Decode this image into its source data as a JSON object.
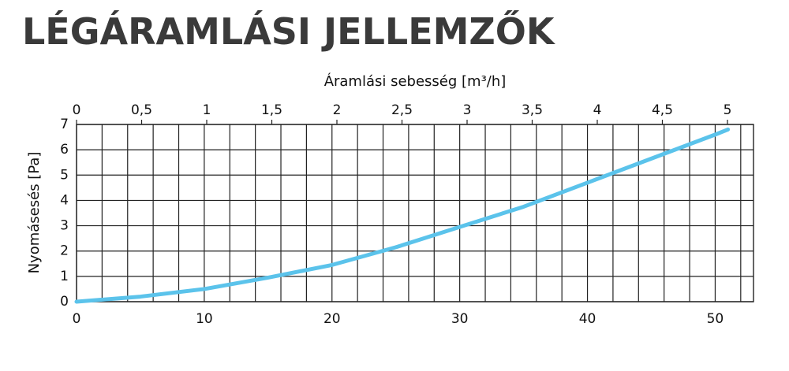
{
  "chart_data": {
    "type": "line",
    "title": "LÉGÁRAMLÁSI JELLEMZŐK",
    "x2_label": "Áramlási sebesség [m³/h]",
    "y_label": "Nyomásesés [Pa]",
    "x": [
      0,
      5,
      10,
      15,
      20,
      25,
      30,
      35,
      40,
      45,
      50,
      51
    ],
    "series": [
      {
        "color": "#5bc3eb",
        "values": [
          0,
          0.2,
          0.5,
          0.95,
          1.45,
          2.15,
          2.95,
          3.75,
          4.7,
          5.65,
          6.6,
          6.8
        ]
      }
    ],
    "xlim": [
      0,
      53
    ],
    "xticks": [
      0,
      10,
      20,
      30,
      40,
      50
    ],
    "xgrid": [
      0,
      2,
      4,
      6,
      8,
      10,
      12,
      14,
      16,
      18,
      20,
      22,
      24,
      26,
      28,
      30,
      32,
      34,
      36,
      38,
      40,
      42,
      44,
      46,
      48,
      50,
      52
    ],
    "x2lim": [
      0,
      5.2
    ],
    "x2ticks": [
      0,
      {
        "value": 0.5,
        "label": "0,5"
      },
      1,
      {
        "value": 1.5,
        "label": "1,5"
      },
      2,
      {
        "value": 2.5,
        "label": "2,5"
      },
      3,
      {
        "value": 3.5,
        "label": "3,5"
      },
      4,
      {
        "value": 4.5,
        "label": "4,5"
      },
      5
    ],
    "ylim": [
      0,
      7
    ],
    "yticks": [
      0,
      1,
      2,
      3,
      4,
      5,
      6,
      7
    ],
    "grid": true
  }
}
